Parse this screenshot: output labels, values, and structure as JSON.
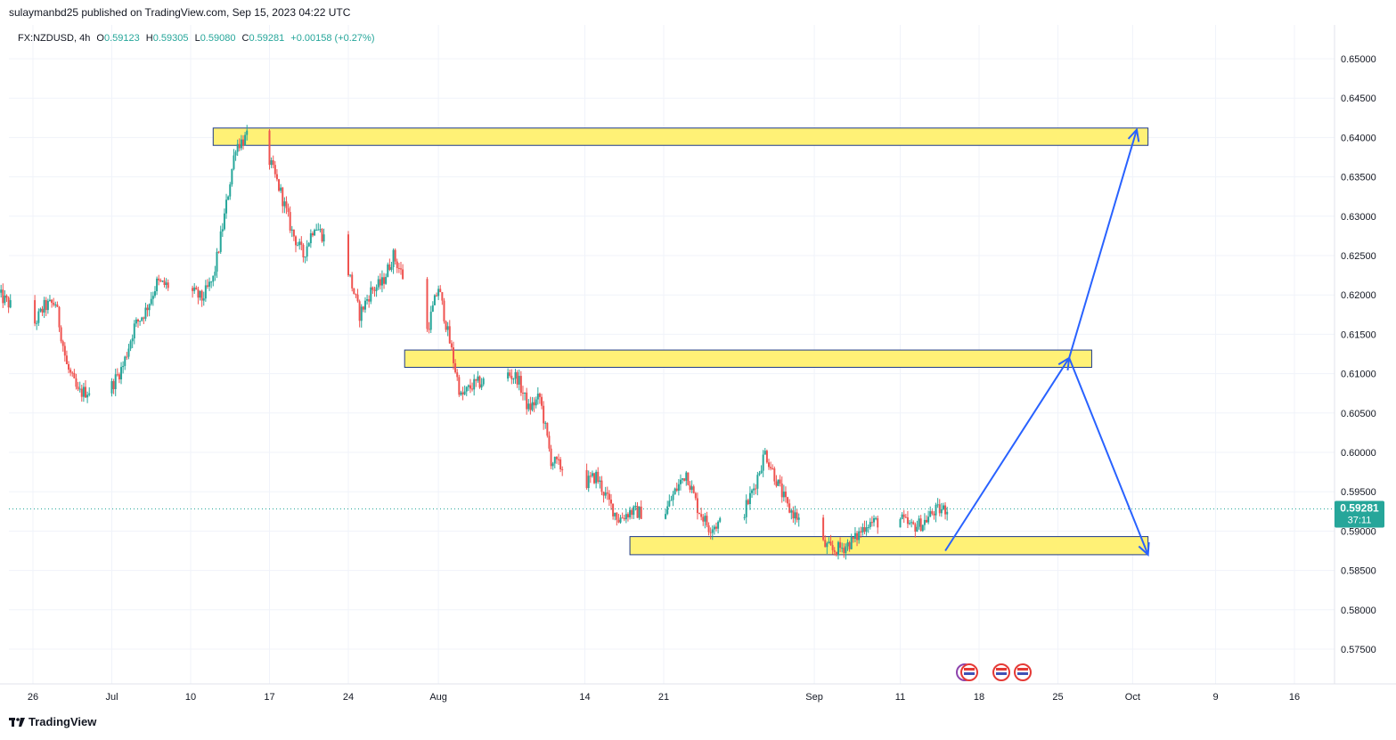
{
  "header": {
    "published": "sulaymanbd25 published on TradingView.com, Sep 15, 2023 04:22 UTC"
  },
  "legend": {
    "symbol": "FX:NZDUSD",
    "timeframe": "4h",
    "o_label": "O",
    "o": "0.59123",
    "h_label": "H",
    "h": "0.59305",
    "l_label": "L",
    "l": "0.59080",
    "c_label": "C",
    "c": "0.59281",
    "change": "+0.00158 (+0.27%)"
  },
  "price_tag": {
    "price": "0.59281",
    "countdown": "37:11"
  },
  "footer": {
    "brand": "TradingView"
  },
  "colors": {
    "up": "#26a69a",
    "down": "#ef5350",
    "zone_fill": "#fff176",
    "zone_stroke": "#1e3a8a",
    "arrow": "#2962ff",
    "tag": "#26a69a"
  },
  "chart_data": {
    "type": "candlestick",
    "y_ticks": [
      "0.65000",
      "0.64500",
      "0.64000",
      "0.63500",
      "0.63000",
      "0.62500",
      "0.62000",
      "0.61500",
      "0.61000",
      "0.60500",
      "0.60000",
      "0.59500",
      "0.59000",
      "0.58500",
      "0.58000",
      "0.57500"
    ],
    "x_ticks": [
      "26",
      "Jul",
      "10",
      "17",
      "24",
      "Aug",
      "14",
      "21",
      "Sep",
      "11",
      "18",
      "25",
      "Oct",
      "9",
      "16"
    ],
    "ylim": [
      0.5705,
      0.6547
    ],
    "grid": true,
    "close_path": [
      [
        "Jun 23",
        0.62
      ],
      [
        "Jun 26",
        0.616
      ],
      [
        "Jun 27",
        0.6185
      ],
      [
        "Jun 28",
        0.619
      ],
      [
        "Jun 29",
        0.611
      ],
      [
        "Jun 30",
        0.6075
      ],
      [
        "Jul 3",
        0.6085
      ],
      [
        "Jul 4",
        0.611
      ],
      [
        "Jul 5",
        0.616
      ],
      [
        "Jul 6",
        0.618
      ],
      [
        "Jul 7",
        0.6215
      ],
      [
        "Jul 10",
        0.6205
      ],
      [
        "Jul 11",
        0.6195
      ],
      [
        "Jul 12",
        0.622
      ],
      [
        "Jul 13",
        0.63
      ],
      [
        "Jul 14",
        0.639
      ],
      [
        "Jul 15",
        0.64
      ],
      [
        "Jul 17",
        0.637
      ],
      [
        "Jul 18",
        0.633
      ],
      [
        "Jul 19",
        0.628
      ],
      [
        "Jul 20",
        0.625
      ],
      [
        "Jul 21",
        0.629
      ],
      [
        "Jul 24",
        0.623
      ],
      [
        "Jul 25",
        0.6175
      ],
      [
        "Jul 26",
        0.6205
      ],
      [
        "Jul 27",
        0.6215
      ],
      [
        "Jul 28",
        0.625
      ],
      [
        "Jul 31",
        0.6155
      ],
      [
        "Aug 1",
        0.621
      ],
      [
        "Aug 2",
        0.614
      ],
      [
        "Aug 3",
        0.607
      ],
      [
        "Aug 4",
        0.6085
      ],
      [
        "Aug 7",
        0.61
      ],
      [
        "Aug 8",
        0.6095
      ],
      [
        "Aug 9",
        0.6055
      ],
      [
        "Aug 10",
        0.607
      ],
      [
        "Aug 11",
        0.599
      ],
      [
        "Aug 14",
        0.596
      ],
      [
        "Aug 15",
        0.597
      ],
      [
        "Aug 16",
        0.594
      ],
      [
        "Aug 17",
        0.5915
      ],
      [
        "Aug 18",
        0.5925
      ],
      [
        "Aug 21",
        0.592
      ],
      [
        "Aug 22",
        0.595
      ],
      [
        "Aug 23",
        0.5975
      ],
      [
        "Aug 24",
        0.593
      ],
      [
        "Aug 25",
        0.5905
      ],
      [
        "Aug 28",
        0.592
      ],
      [
        "Aug 29",
        0.5955
      ],
      [
        "Aug 30",
        0.6
      ],
      [
        "Aug 31",
        0.5965
      ],
      [
        "Sep 1",
        0.593
      ],
      [
        "Sep 4",
        0.5885
      ],
      [
        "Sep 5",
        0.5875
      ],
      [
        "Sep 6",
        0.588
      ],
      [
        "Sep 7",
        0.589
      ],
      [
        "Sep 8",
        0.591
      ],
      [
        "Sep 11",
        0.5915
      ],
      [
        "Sep 12",
        0.5905
      ],
      [
        "Sep 13",
        0.591
      ],
      [
        "Sep 14",
        0.5925
      ],
      [
        "Sep 15",
        0.59281
      ]
    ],
    "zones": [
      {
        "from": "Jul 12",
        "to": "Oct 3",
        "top": 0.6412,
        "bottom": 0.639
      },
      {
        "from": "Jul 29",
        "to": "Sep 28",
        "top": 0.613,
        "bottom": 0.6108
      },
      {
        "from": "Aug 18",
        "to": "Oct 3",
        "top": 0.5893,
        "bottom": 0.587
      }
    ],
    "projection": [
      [
        "Sep 15",
        0.5875
      ],
      [
        "Sep 26",
        0.612
      ],
      [
        "Oct 2",
        0.641
      ]
    ],
    "projection_alt": [
      [
        "Sep 26",
        0.612
      ],
      [
        "Oct 3",
        0.587
      ]
    ],
    "last_price": 0.59281
  }
}
